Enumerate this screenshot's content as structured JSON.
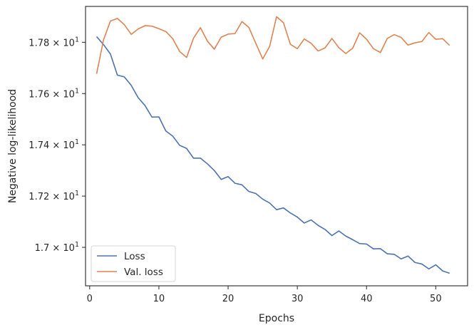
{
  "chart_data": {
    "type": "line",
    "xlabel": "Epochs",
    "ylabel": "Negative log-likelihood",
    "xlim": [
      -0.6,
      54.6
    ],
    "ylim": [
      16.85,
      17.94
    ],
    "x_ticks": [
      0,
      10,
      20,
      30,
      40,
      50
    ],
    "x_tick_labels": [
      "0",
      "10",
      "20",
      "30",
      "40",
      "50"
    ],
    "y_ticks": [
      17.0,
      17.2,
      17.4,
      17.6,
      17.8
    ],
    "y_tick_labels": [
      {
        "mantissa": "1.7",
        "exponent": "1"
      },
      {
        "mantissa": "1.72",
        "exponent": "1"
      },
      {
        "mantissa": "1.74",
        "exponent": "1"
      },
      {
        "mantissa": "1.76",
        "exponent": "1"
      },
      {
        "mantissa": "1.78",
        "exponent": "1"
      }
    ],
    "x": [
      1,
      2,
      3,
      4,
      5,
      6,
      7,
      8,
      9,
      10,
      11,
      12,
      13,
      14,
      15,
      16,
      17,
      18,
      19,
      20,
      21,
      22,
      23,
      24,
      25,
      26,
      27,
      28,
      29,
      30,
      31,
      32,
      33,
      34,
      35,
      36,
      37,
      38,
      39,
      40,
      41,
      42,
      43,
      44,
      45,
      46,
      47,
      48,
      49,
      50,
      51,
      52
    ],
    "series": [
      {
        "name": "Loss",
        "color": "#4c72b0",
        "values": [
          17.822,
          17.791,
          17.754,
          17.672,
          17.665,
          17.632,
          17.584,
          17.553,
          17.508,
          17.509,
          17.454,
          17.434,
          17.398,
          17.386,
          17.348,
          17.348,
          17.326,
          17.3,
          17.265,
          17.276,
          17.25,
          17.244,
          17.218,
          17.21,
          17.188,
          17.173,
          17.147,
          17.154,
          17.134,
          17.118,
          17.095,
          17.107,
          17.086,
          17.07,
          17.046,
          17.064,
          17.044,
          17.03,
          17.015,
          17.013,
          16.994,
          16.995,
          16.975,
          16.973,
          16.955,
          16.966,
          16.941,
          16.935,
          16.916,
          16.932,
          16.908,
          16.899
        ]
      },
      {
        "name": "Val. loss",
        "color": "#dd8452",
        "values": [
          17.677,
          17.81,
          17.883,
          17.893,
          17.869,
          17.831,
          17.852,
          17.865,
          17.863,
          17.853,
          17.842,
          17.814,
          17.764,
          17.741,
          17.816,
          17.857,
          17.805,
          17.773,
          17.82,
          17.832,
          17.834,
          17.881,
          17.858,
          17.796,
          17.735,
          17.784,
          17.9,
          17.876,
          17.792,
          17.775,
          17.813,
          17.796,
          17.766,
          17.778,
          17.815,
          17.779,
          17.756,
          17.777,
          17.837,
          17.812,
          17.775,
          17.76,
          17.815,
          17.83,
          17.819,
          17.789,
          17.798,
          17.803,
          17.838,
          17.812,
          17.814,
          17.788
        ]
      }
    ],
    "legend": {
      "placement": "lower-left",
      "entries": [
        "Loss",
        "Val. loss"
      ]
    },
    "grid": false,
    "y_scale": "log"
  }
}
